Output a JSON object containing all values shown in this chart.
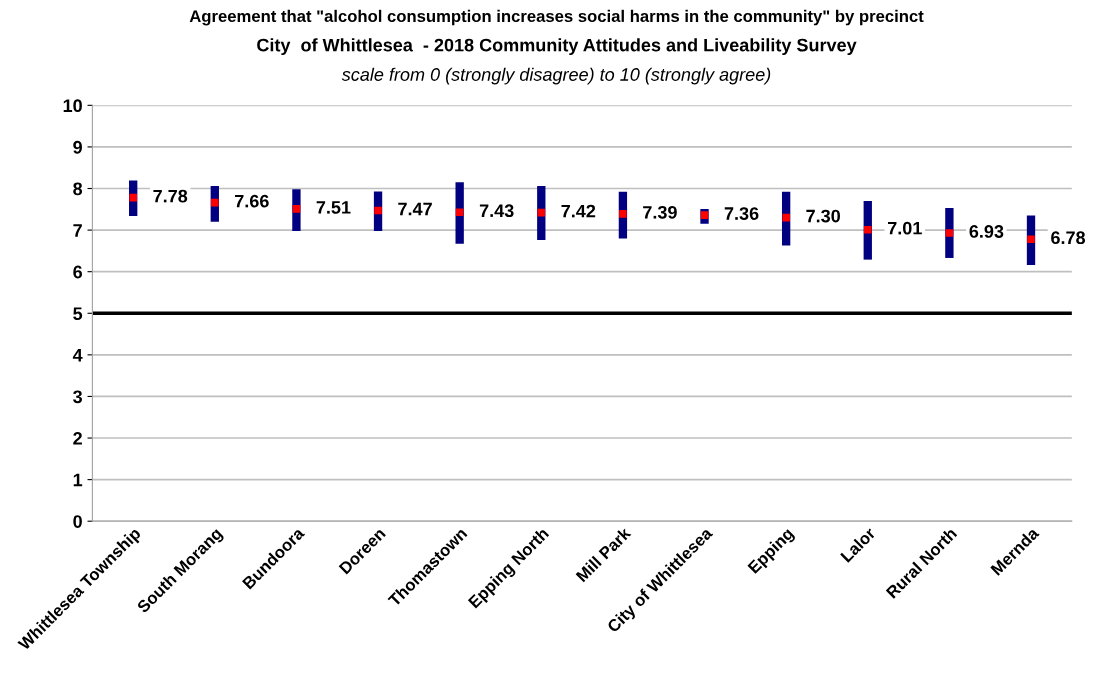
{
  "chart_data": {
    "type": "scatter",
    "title": "Agreement that \"alcohol consumption increases social harms in the community\" by precinct",
    "subtitle": "City  of Whittlesea  - 2018 Community Attitudes and Liveability Survey",
    "annotations": [
      "scale from 0 (strongly disagree) to 10 (strongly agree)"
    ],
    "categories": [
      "Whittlesea Township",
      "South Morang",
      "Bundoora",
      "Doreen",
      "Thomastown",
      "Epping North",
      "Mill Park",
      "City of Whittlesea",
      "Epping",
      "Lalor",
      "Rural North",
      "Mernda"
    ],
    "values": [
      7.78,
      7.66,
      7.51,
      7.47,
      7.43,
      7.42,
      7.39,
      7.36,
      7.3,
      7.01,
      6.93,
      6.78
    ],
    "value_labels": [
      "7.78",
      "7.66",
      "7.51",
      "7.47",
      "7.43",
      "7.42",
      "7.39",
      "7.36",
      "7.30",
      "7.01",
      "6.93",
      "6.78"
    ],
    "errors": [
      [
        7.34,
        8.19
      ],
      [
        7.2,
        8.06
      ],
      [
        6.98,
        7.98
      ],
      [
        6.98,
        7.93
      ],
      [
        6.67,
        8.15
      ],
      [
        6.76,
        8.06
      ],
      [
        6.8,
        7.92
      ],
      [
        7.15,
        7.51
      ],
      [
        6.63,
        7.92
      ],
      [
        6.29,
        7.7
      ],
      [
        6.33,
        7.53
      ],
      [
        6.16,
        7.35
      ]
    ],
    "color": "#ff0000",
    "marker": "square",
    "ylim": [
      0,
      10
    ],
    "yticks": [
      0,
      1,
      2,
      3,
      4,
      5,
      6,
      7,
      8,
      9,
      10
    ],
    "grid": "y",
    "ref_lines": [
      {
        "axis": "y",
        "value": 5,
        "color": "#000000"
      }
    ]
  }
}
